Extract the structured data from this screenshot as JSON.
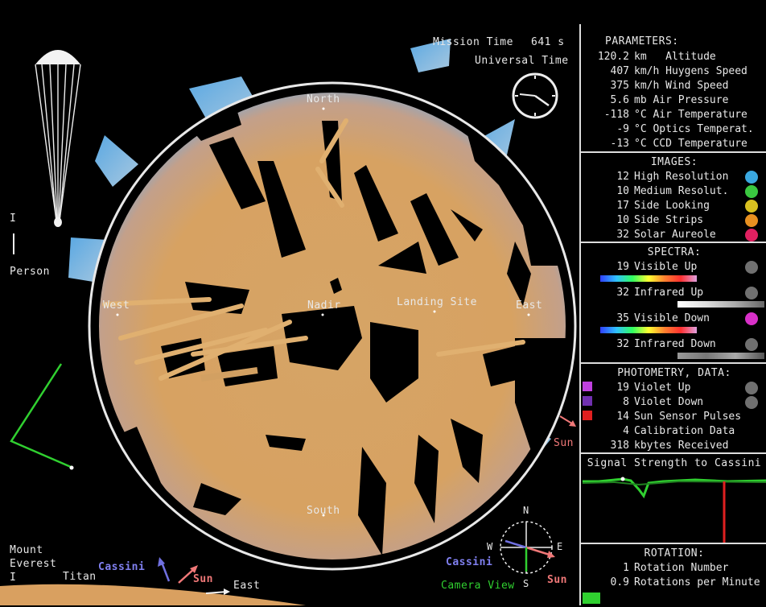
{
  "mission": {
    "mission_time_label": "Mission Time",
    "mission_time_value": "641 s",
    "universal_time_label": "Universal Time"
  },
  "scale": {
    "person_marker": "I",
    "person_label": "Person",
    "everest_label": "Mount\nEverest",
    "everest_marker": "I",
    "titan_label": "Titan"
  },
  "compass_main": {
    "north": "North",
    "south": "South",
    "west": "West",
    "east": "East",
    "nadir": "Nadir",
    "landing_site": "Landing Site",
    "sun": "Sun"
  },
  "bottom_labels": {
    "cassini": "Cassini",
    "sun": "Sun",
    "east": "East"
  },
  "mini_compass": {
    "n": "N",
    "s": "S",
    "w": "W",
    "e": "E",
    "cassini": "Cassini",
    "sun": "Sun",
    "camera_view": "Camera View"
  },
  "parameters": {
    "title": "PARAMETERS:",
    "rows": [
      {
        "value": "120.2",
        "unit": "km   Altitude"
      },
      {
        "value": "407",
        "unit": "km/h Huygens Speed"
      },
      {
        "value": "375",
        "unit": "km/h Wind Speed"
      },
      {
        "value": "5.6",
        "unit": "mb Air Pressure"
      },
      {
        "value": "-118",
        "unit": "°C Air Temperature"
      },
      {
        "value": "-9",
        "unit": "°C Optics Temperat."
      },
      {
        "value": "-13",
        "unit": "°C CCD Temperature"
      }
    ]
  },
  "images": {
    "title": "IMAGES:",
    "rows": [
      {
        "value": "12",
        "label": "High Resolution",
        "color": "#3aa8e0"
      },
      {
        "value": "10",
        "label": "Medium Resolut.",
        "color": "#3ac840"
      },
      {
        "value": "17",
        "label": "Side Looking",
        "color": "#d8c020"
      },
      {
        "value": "10",
        "label": "Side Strips",
        "color": "#e89020"
      },
      {
        "value": "32",
        "label": "Solar Aureole",
        "color": "#e02060"
      }
    ]
  },
  "spectra": {
    "title": "SPECTRA:",
    "rows": [
      {
        "value": "19",
        "label": "Visible Up",
        "color": "#707070"
      },
      {
        "value": "32",
        "label": "Infrared Up",
        "color": "#707070"
      },
      {
        "value": "35",
        "label": "Visible Down",
        "color": "#d830c8"
      },
      {
        "value": "32",
        "label": "Infrared Down",
        "color": "#707070"
      }
    ]
  },
  "photometry": {
    "title": "PHOTOMETRY, DATA:",
    "rows": [
      {
        "value": "19",
        "label": "Violet Up",
        "color": "#c040e0"
      },
      {
        "value": "8",
        "label": "Violet Down",
        "color": "#7030b0"
      },
      {
        "value": "14",
        "label": "Sun Sensor Pulses",
        "color": "#e02020"
      },
      {
        "value": "4",
        "label": "Calibration Data"
      },
      {
        "value": "318",
        "label": "kbytes Received"
      }
    ]
  },
  "signal": {
    "title": "Signal Strength to Cassini"
  },
  "rotation": {
    "title": "ROTATION:",
    "rows": [
      {
        "value": "1",
        "label": "Rotation Number"
      },
      {
        "value": "0.9",
        "label": "Rotations per Minute"
      }
    ]
  },
  "colors": {
    "terrain": "#d4a060",
    "sky": "#6ab4e8",
    "signal": "#30d030",
    "border": "#dddddd"
  }
}
